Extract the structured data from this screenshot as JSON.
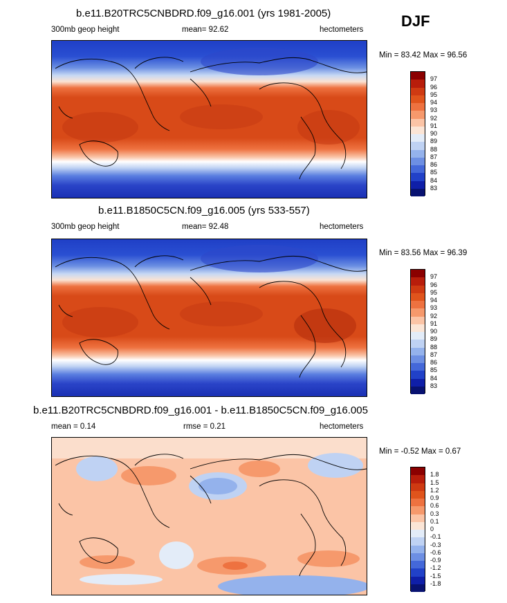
{
  "season": "DJF",
  "panels": [
    {
      "title": "b.e11.B20TRC5CNBDRD.f09_g16.001 (yrs 1981-2005)",
      "left_label": "300mb geop height",
      "center_label": "mean=  92.62",
      "right_label": "hectometers",
      "minmax": "Min =  83.42 Max =  96.56"
    },
    {
      "title": "b.e11.B1850C5CN.f09_g16.005 (yrs 533-557)",
      "left_label": "300mb geop height",
      "center_label": "mean=  92.48",
      "right_label": "hectometers",
      "minmax": "Min =  83.56 Max =  96.39"
    },
    {
      "title": "b.e11.B20TRC5CNBDRD.f09_g16.001 - b.e11.B1850C5CN.f09_g16.005",
      "left_label": "mean =   0.14",
      "center_label": "rmse =   0.21",
      "right_label": "hectometers",
      "minmax": "Min =  -0.52 Max =   0.67"
    }
  ],
  "colorbar_abs": {
    "labels": [
      "97",
      "96",
      "95",
      "94",
      "93",
      "92",
      "91",
      "90",
      "89",
      "88",
      "87",
      "86",
      "85",
      "84",
      "83"
    ],
    "colors": [
      "#8b0000",
      "#b81d0b",
      "#cf3a12",
      "#e0541c",
      "#ee7240",
      "#f6996c",
      "#fbc4a6",
      "#fbe5d6",
      "#e3ecf8",
      "#bfd2f3",
      "#94b2ec",
      "#6d8fe3",
      "#4468d9",
      "#2141c8",
      "#0f1fa8",
      "#081271"
    ]
  },
  "colorbar_diff": {
    "labels": [
      "1.8",
      "1.5",
      "1.2",
      "0.9",
      "0.6",
      "0.3",
      "0.1",
      "0",
      "-0.1",
      "-0.3",
      "-0.6",
      "-0.9",
      "-1.2",
      "-1.5",
      "-1.8"
    ],
    "colors": [
      "#8b0000",
      "#b81d0b",
      "#cf3a12",
      "#e0541c",
      "#ee7240",
      "#f6996c",
      "#fbc4a6",
      "#fbe5d6",
      "#e3ecf8",
      "#bfd2f3",
      "#94b2ec",
      "#6d8fe3",
      "#4468d9",
      "#2141c8",
      "#0f1fa8",
      "#081271"
    ]
  }
}
